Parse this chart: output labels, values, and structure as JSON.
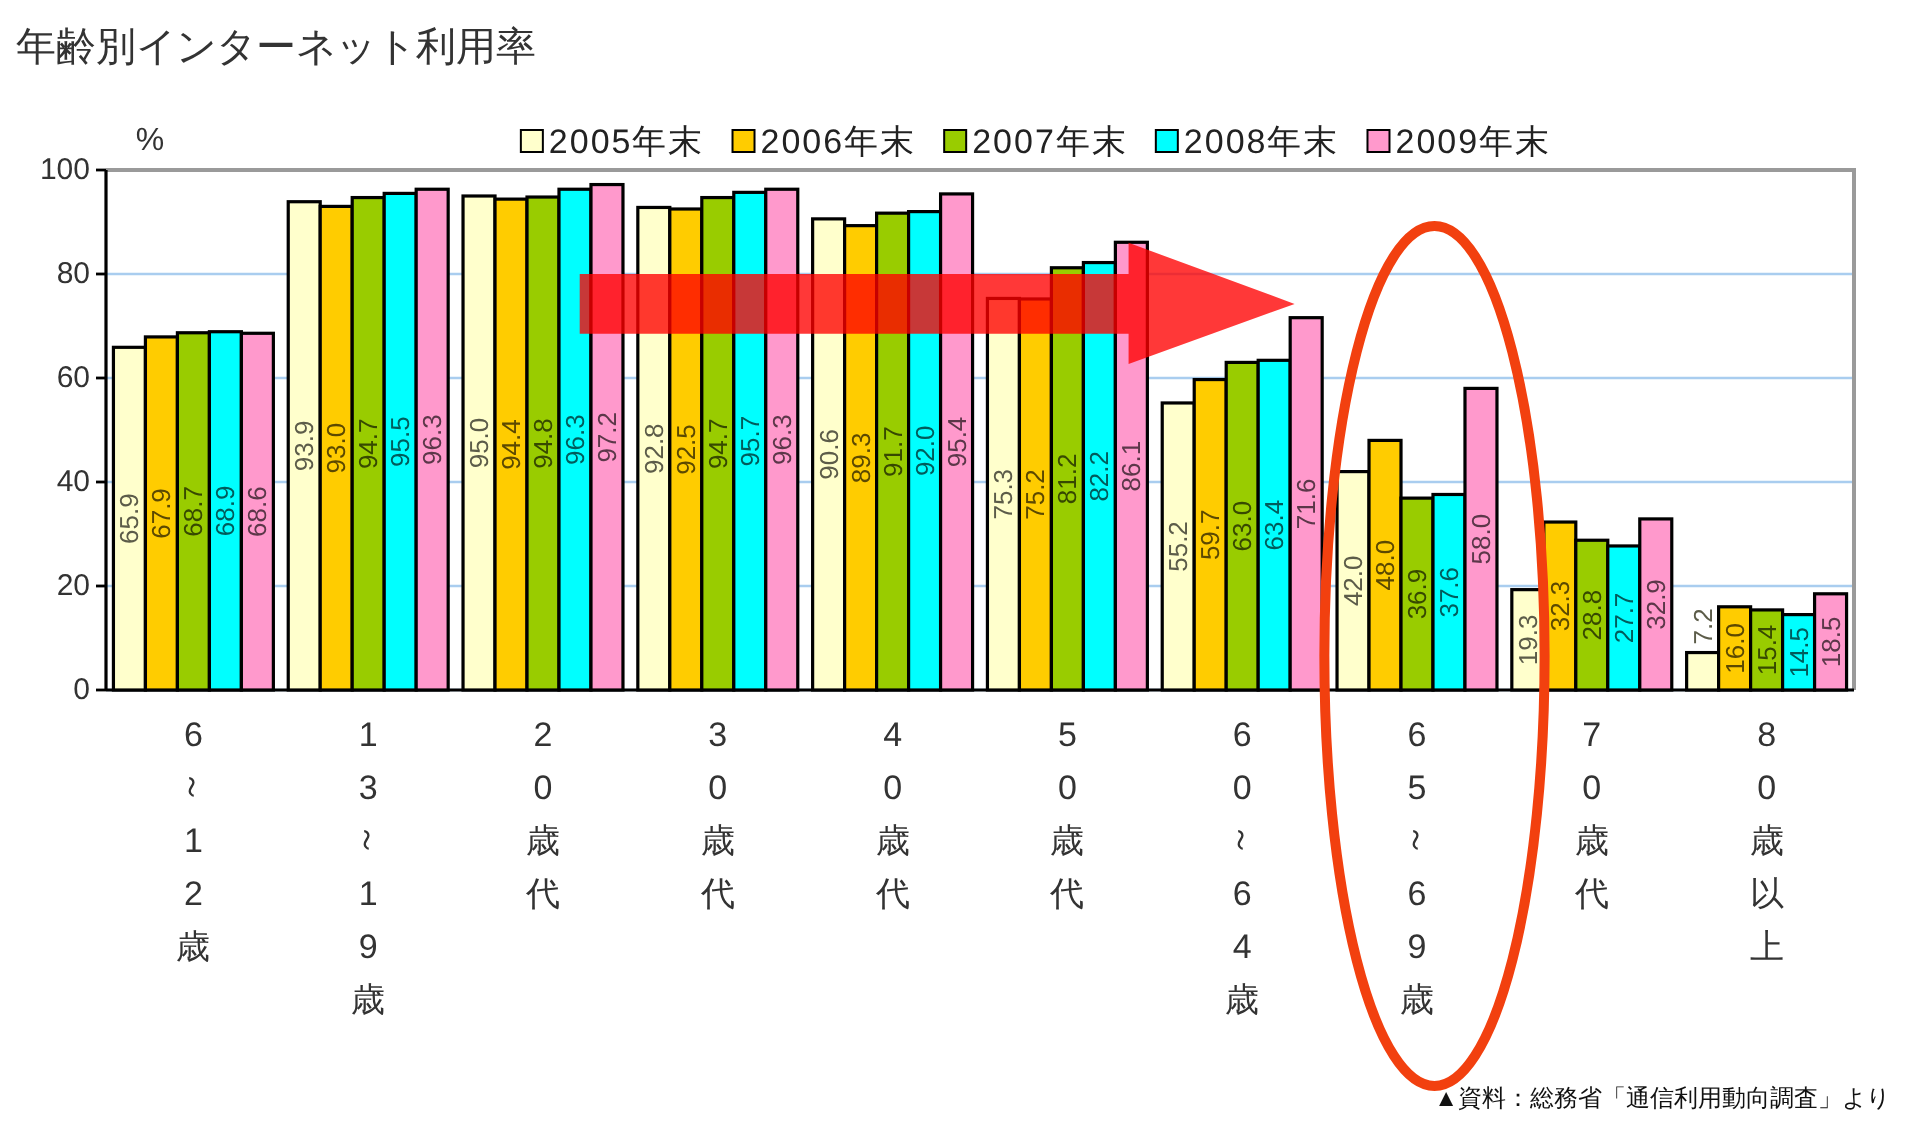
{
  "chart_data": {
    "type": "bar",
    "title": "年齢別インターネット利用率",
    "ylabel": "%",
    "categories": [
      "6～12歳",
      "13～19歳",
      "20歳代",
      "30歳代",
      "40歳代",
      "50歳代",
      "60～64歳",
      "65～69歳",
      "70歳代",
      "80歳以上"
    ],
    "series": [
      {
        "name": "2005年末",
        "color": "#ffffcc",
        "values": [
          65.9,
          93.9,
          95.0,
          92.8,
          90.6,
          75.3,
          55.2,
          42.0,
          19.3,
          7.2
        ],
        "value_labels": [
          "65.9",
          "93.9",
          "95.0",
          "92.8",
          "90.6",
          "75.3",
          "55.2",
          "42.0",
          "19.3",
          "7.2"
        ]
      },
      {
        "name": "2006年末",
        "color": "#ffcc00",
        "values": [
          67.9,
          93.0,
          94.4,
          92.5,
          89.3,
          75.2,
          59.7,
          48.0,
          32.3,
          16.0
        ],
        "value_labels": [
          "67.9",
          "93.0",
          "94.4",
          "92.5",
          "89.3",
          "75.2",
          "59.7",
          "48.0",
          "32.3",
          "16.0"
        ]
      },
      {
        "name": "2007年末",
        "color": "#99cc00",
        "values": [
          68.7,
          94.7,
          94.8,
          94.7,
          91.7,
          81.2,
          63.0,
          36.9,
          28.8,
          15.4
        ],
        "value_labels": [
          "68.7",
          "94.7",
          "94.8",
          "94.7",
          "91.7",
          "81.2",
          "63.0",
          "36.9",
          "28.8",
          "15.4"
        ]
      },
      {
        "name": "2008年末",
        "color": "#00ffff",
        "values": [
          68.9,
          95.5,
          96.3,
          95.7,
          92.0,
          82.2,
          63.4,
          37.6,
          27.7,
          14.5
        ],
        "value_labels": [
          "68.9",
          "95.5",
          "96.3",
          "95.7",
          "92.0",
          "82.2",
          "63.4",
          "37.6",
          "27.7",
          "14.5"
        ]
      },
      {
        "name": "2009年末",
        "color": "#ff99cc",
        "values": [
          68.6,
          96.3,
          97.2,
          96.3,
          95.4,
          86.1,
          71.6,
          58.0,
          32.9,
          18.5
        ],
        "value_labels": [
          "68.6",
          "96.3",
          "97.2",
          "96.3",
          "95.4",
          "86.1",
          "71.6",
          "58.0",
          "32.9",
          "18.5"
        ]
      }
    ],
    "ylim": [
      0,
      100
    ],
    "yticks": [
      0,
      20,
      40,
      60,
      80,
      100
    ],
    "grid": "y",
    "legend": "top",
    "annotations": [
      "▲資料：総務省「通信利用動向調査」より"
    ]
  }
}
